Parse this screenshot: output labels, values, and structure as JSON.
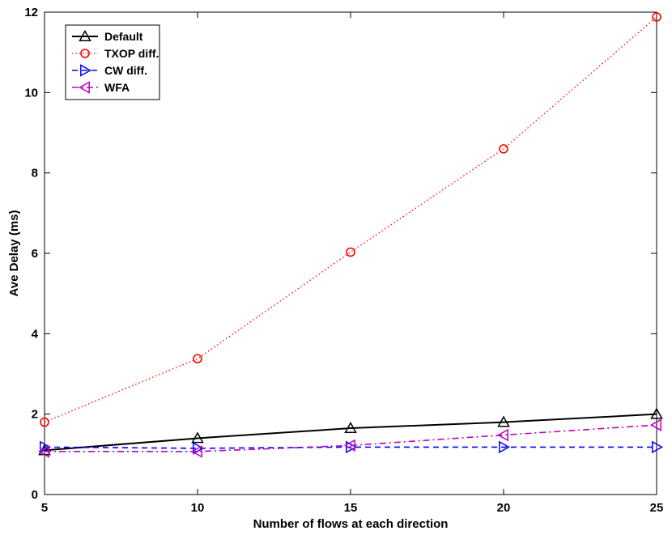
{
  "chart_data": {
    "type": "line",
    "title": "",
    "xlabel": "Number of flows at each direction",
    "ylabel": "Ave Delay (ms)",
    "xlim": [
      5,
      25
    ],
    "ylim": [
      0,
      12
    ],
    "xticks": [
      5,
      10,
      15,
      20,
      25
    ],
    "yticks": [
      0,
      2,
      4,
      6,
      8,
      10,
      12
    ],
    "legend_position": "top-left",
    "x": [
      5,
      10,
      15,
      20,
      25
    ],
    "series": [
      {
        "name": "Default",
        "values": [
          1.1,
          1.4,
          1.65,
          1.8,
          2.0
        ],
        "color": "#000000",
        "marker": "triangle-up",
        "line": "solid"
      },
      {
        "name": "TXOP diff.",
        "values": [
          1.8,
          3.38,
          6.03,
          8.6,
          11.88
        ],
        "color": "#ff0000",
        "marker": "circle",
        "line": "dotted"
      },
      {
        "name": "CW diff.",
        "values": [
          1.18,
          1.15,
          1.18,
          1.18,
          1.18
        ],
        "color": "#0000ff",
        "marker": "triangle-right",
        "line": "dashed"
      },
      {
        "name": "WFA",
        "values": [
          1.07,
          1.07,
          1.22,
          1.48,
          1.73
        ],
        "color": "#bf00bf",
        "marker": "triangle-left",
        "line": "dashdot"
      }
    ]
  }
}
